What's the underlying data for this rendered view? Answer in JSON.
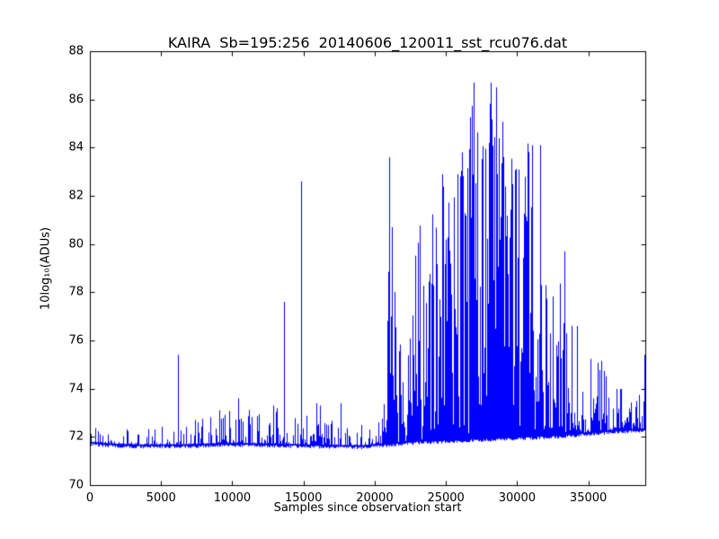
{
  "figure": {
    "background": "#ffffff",
    "axis_color": "#000000"
  },
  "chart_data": {
    "type": "line",
    "title": "KAIRA  Sb=195:256  20140606_120011_sst_rcu076.dat",
    "xlabel": "Samples since observation start",
    "ylabel": "10log₁₀(ADUs)",
    "series_color": "#0000ff",
    "grid": false,
    "legend": "none",
    "xlim": [
      0,
      39000
    ],
    "ylim": [
      70,
      88
    ],
    "xticks": [
      0,
      5000,
      10000,
      15000,
      20000,
      25000,
      30000,
      35000
    ],
    "yticks": [
      70,
      72,
      74,
      76,
      78,
      80,
      82,
      84,
      86,
      88
    ],
    "baseline": [
      [
        0,
        71.8
      ],
      [
        1500,
        71.72
      ],
      [
        4000,
        71.68
      ],
      [
        7000,
        71.7
      ],
      [
        10000,
        71.75
      ],
      [
        13000,
        71.72
      ],
      [
        16000,
        71.68
      ],
      [
        19000,
        71.65
      ],
      [
        21000,
        71.75
      ],
      [
        23000,
        71.85
      ],
      [
        25000,
        71.9
      ],
      [
        27000,
        71.95
      ],
      [
        29000,
        72.0
      ],
      [
        31000,
        72.05
      ],
      [
        33000,
        72.1
      ],
      [
        35000,
        72.2
      ],
      [
        37000,
        72.3
      ],
      [
        39000,
        72.35
      ]
    ],
    "upper_envelope": [
      [
        0,
        72.4,
        6
      ],
      [
        2000,
        72.3,
        6
      ],
      [
        4000,
        72.4,
        6
      ],
      [
        6000,
        72.6,
        5.5
      ],
      [
        8000,
        72.9,
        5
      ],
      [
        9500,
        73.2,
        4.5
      ],
      [
        10500,
        73.6,
        4
      ],
      [
        11500,
        73.2,
        4.5
      ],
      [
        12500,
        73.1,
        4.5
      ],
      [
        13500,
        73.4,
        4
      ],
      [
        14500,
        73.0,
        4.5
      ],
      [
        15500,
        73.2,
        4
      ],
      [
        16200,
        73.4,
        4
      ],
      [
        17000,
        72.9,
        5
      ],
      [
        17800,
        73.4,
        4.5
      ],
      [
        18600,
        72.8,
        5
      ],
      [
        19500,
        72.8,
        5
      ],
      [
        20200,
        73.5,
        3
      ],
      [
        20600,
        76.5,
        1.6
      ],
      [
        21000,
        80,
        1.4
      ],
      [
        21400,
        79,
        1.4
      ],
      [
        21900,
        76.5,
        1.5
      ],
      [
        22400,
        79.5,
        1.2
      ],
      [
        22900,
        81.5,
        1.1
      ],
      [
        23400,
        80.5,
        1.1
      ],
      [
        23900,
        82.5,
        0.95
      ],
      [
        24400,
        82.5,
        0.95
      ],
      [
        24900,
        84,
        0.85
      ],
      [
        25400,
        83.5,
        0.85
      ],
      [
        25900,
        84.5,
        0.8
      ],
      [
        26400,
        84.5,
        0.8
      ],
      [
        26900,
        86.3,
        0.75
      ],
      [
        27400,
        85,
        0.75
      ],
      [
        27900,
        86.2,
        0.72
      ],
      [
        28400,
        86.6,
        0.72
      ],
      [
        28900,
        85.2,
        0.78
      ],
      [
        29400,
        85.6,
        0.8
      ],
      [
        29900,
        84.6,
        0.85
      ],
      [
        30400,
        84.2,
        0.9
      ],
      [
        30900,
        84.2,
        1.0
      ],
      [
        31300,
        81,
        1.3
      ],
      [
        31700,
        83.9,
        1.4
      ],
      [
        32100,
        77.8,
        1.8
      ],
      [
        32700,
        78.2,
        1.8
      ],
      [
        33300,
        79.5,
        1.7
      ],
      [
        33900,
        77.2,
        1.9
      ],
      [
        34500,
        76.6,
        2.0
      ],
      [
        35100,
        76.0,
        2.1
      ],
      [
        35700,
        75.6,
        2.2
      ],
      [
        36300,
        74.8,
        2.4
      ],
      [
        37000,
        74.2,
        2.5
      ],
      [
        37600,
        73.8,
        2.6
      ],
      [
        38200,
        73.6,
        2.6
      ],
      [
        38700,
        74.0,
        2.5
      ],
      [
        39000,
        75.4,
        2.2
      ]
    ],
    "spikes": [
      [
        6200,
        75.4
      ],
      [
        9100,
        73.1
      ],
      [
        10400,
        73.6
      ],
      [
        12900,
        73.3
      ],
      [
        13600,
        77.6
      ],
      [
        14800,
        82.6
      ],
      [
        15900,
        73.4
      ],
      [
        16150,
        73.3
      ],
      [
        17600,
        73.4
      ],
      [
        21000,
        83.6
      ],
      [
        21200,
        80.7
      ],
      [
        26950,
        86.7
      ],
      [
        28150,
        86.7
      ],
      [
        28500,
        86.5
      ],
      [
        31050,
        84.1
      ],
      [
        31600,
        84.1
      ],
      [
        33350,
        79.7
      ],
      [
        34200,
        76.6
      ],
      [
        38950,
        75.4
      ]
    ]
  }
}
